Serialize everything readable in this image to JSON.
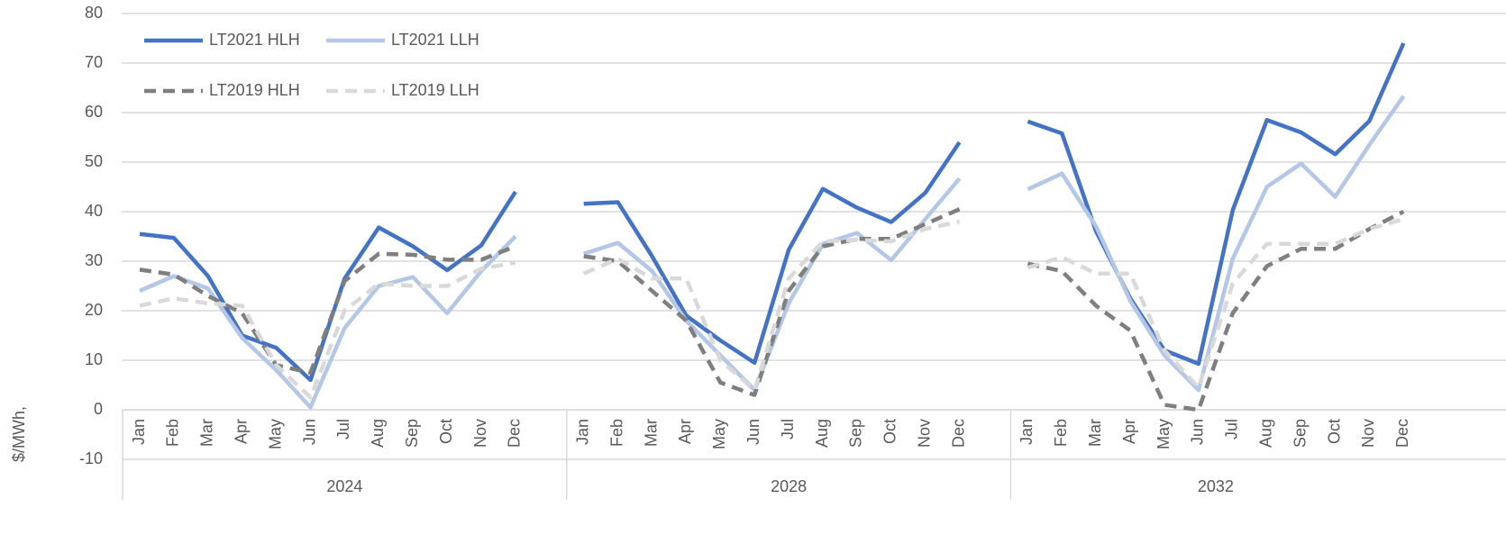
{
  "chart_data": {
    "type": "line",
    "y_label": "$/MWh,",
    "categories": [
      "Jan",
      "Feb",
      "Mar",
      "Apr",
      "May",
      "Jun",
      "Jul",
      "Aug",
      "Sep",
      "Oct",
      "Nov",
      "Dec",
      null,
      "Jan",
      "Feb",
      "Mar",
      "Apr",
      "May",
      "Jun",
      "Jul",
      "Aug",
      "Sep",
      "Oct",
      "Nov",
      "Dec",
      null,
      "Jan",
      "Feb",
      "Mar",
      "Apr",
      "May",
      "Jun",
      "Jul",
      "Aug",
      "Sep",
      "Oct",
      "Nov",
      "Dec"
    ],
    "groups": [
      "2024",
      "2028",
      "2032"
    ],
    "ylim": [
      -10,
      80
    ],
    "yticks": [
      -10,
      0,
      10,
      20,
      30,
      40,
      50,
      60,
      70,
      80
    ],
    "grid": true,
    "legend": "upper-left",
    "series": [
      {
        "name": "LT2021 HLH",
        "color": "#4472c4",
        "dashed": false,
        "values": [
          35.5,
          34.7,
          27,
          15,
          12.5,
          6,
          26.5,
          36.8,
          33,
          28.2,
          33.2,
          44,
          null,
          41.6,
          41.9,
          31,
          19,
          14,
          9.5,
          32.3,
          44.6,
          40.8,
          37.9,
          43.8,
          54,
          null,
          58.2,
          55.8,
          36,
          22.5,
          12,
          9.3,
          40.3,
          58.5,
          56,
          51.6,
          58.3,
          74
        ]
      },
      {
        "name": "LT2021 LLH",
        "color": "#b4c7e7",
        "dashed": false,
        "values": [
          24,
          27,
          24.5,
          14.5,
          8,
          0.5,
          16.5,
          25,
          26.8,
          19.5,
          28,
          35,
          null,
          31.5,
          33.7,
          28,
          18,
          11,
          4,
          21.5,
          33.5,
          35.7,
          30.2,
          38.5,
          46.7,
          null,
          44.5,
          47.7,
          37,
          22,
          11,
          4,
          30.5,
          45,
          49.7,
          43,
          53.5,
          63.3
        ]
      },
      {
        "name": "LT2019 HLH",
        "color": "#7f7f7f",
        "dashed": true,
        "values": [
          28.3,
          27.3,
          23,
          19.5,
          9,
          7.5,
          26,
          31.5,
          31.3,
          30.3,
          30.3,
          33,
          null,
          31,
          30,
          24,
          18,
          5.5,
          3,
          24,
          33,
          34.5,
          34.5,
          37.5,
          40.5,
          null,
          29.5,
          28,
          21,
          16,
          1,
          0,
          19.5,
          29,
          32.5,
          32.5,
          36.5,
          40
        ]
      },
      {
        "name": "LT2019 LLH",
        "color": "#d9d9d9",
        "dashed": true,
        "values": [
          21,
          22.5,
          21.5,
          21,
          9,
          2.5,
          20,
          25.5,
          25,
          25,
          28.5,
          29.7,
          null,
          27.5,
          30.5,
          26.5,
          26.5,
          10,
          4,
          26.5,
          34,
          34.3,
          34,
          36.5,
          38,
          null,
          28.7,
          30.8,
          27.5,
          27.5,
          12,
          4.5,
          25.5,
          33.5,
          33.5,
          33.5,
          36.5,
          38.5
        ]
      }
    ]
  }
}
